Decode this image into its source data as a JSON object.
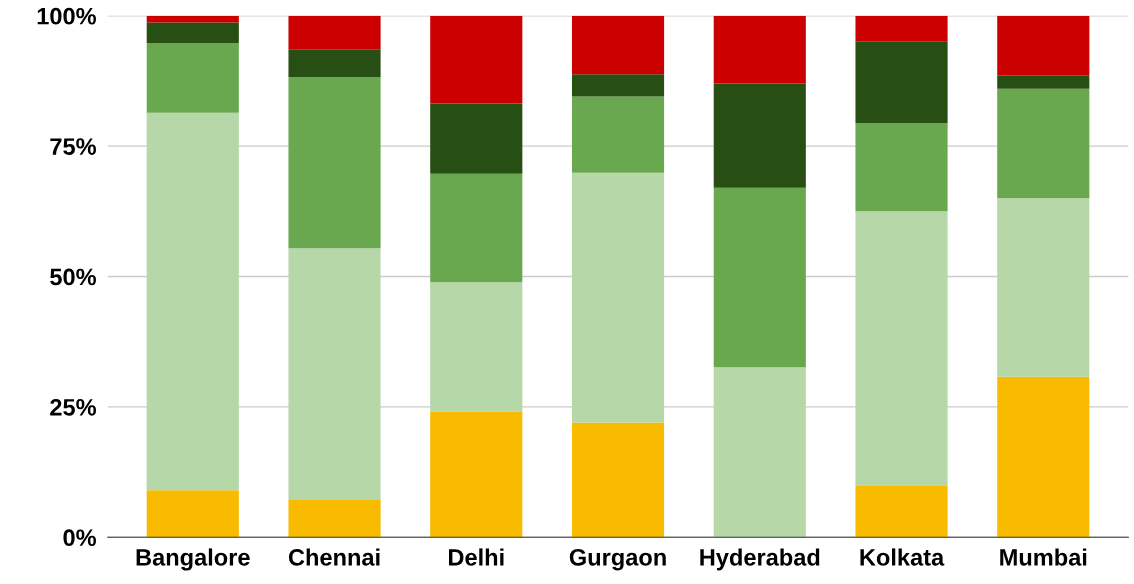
{
  "chart_data": {
    "type": "bar",
    "stacked": true,
    "categories": [
      "Bangalore",
      "Chennai",
      "Delhi",
      "Gurgaon",
      "Hyderabad",
      "Kolkata",
      "Mumbai"
    ],
    "series": [
      {
        "color": "#f9bb00",
        "values": [
          9.0,
          7.3,
          24.1,
          22.0,
          0,
          10.0,
          30.8
        ]
      },
      {
        "color": "#b6d7a8",
        "values": [
          72.4,
          48.1,
          24.8,
          47.9,
          32.6,
          52.5,
          34.2
        ]
      },
      {
        "color": "#6aa84f",
        "values": [
          13.4,
          32.8,
          20.8,
          14.6,
          34.4,
          16.9,
          21.0
        ]
      },
      {
        "color": "#274e13",
        "values": [
          3.9,
          5.4,
          13.5,
          4.3,
          20.0,
          15.7,
          2.5
        ]
      },
      {
        "color": "#cc0000",
        "values": [
          1.3,
          6.4,
          16.8,
          11.2,
          13.0,
          4.9,
          11.5
        ]
      }
    ],
    "ylim": [
      0,
      100
    ],
    "yticks": [
      {
        "value": 0,
        "label": "0%"
      },
      {
        "value": 25,
        "label": "25%"
      },
      {
        "value": 50,
        "label": "50%"
      },
      {
        "value": 75,
        "label": "75%"
      },
      {
        "value": 100,
        "label": "100%"
      }
    ],
    "grid": "y"
  }
}
